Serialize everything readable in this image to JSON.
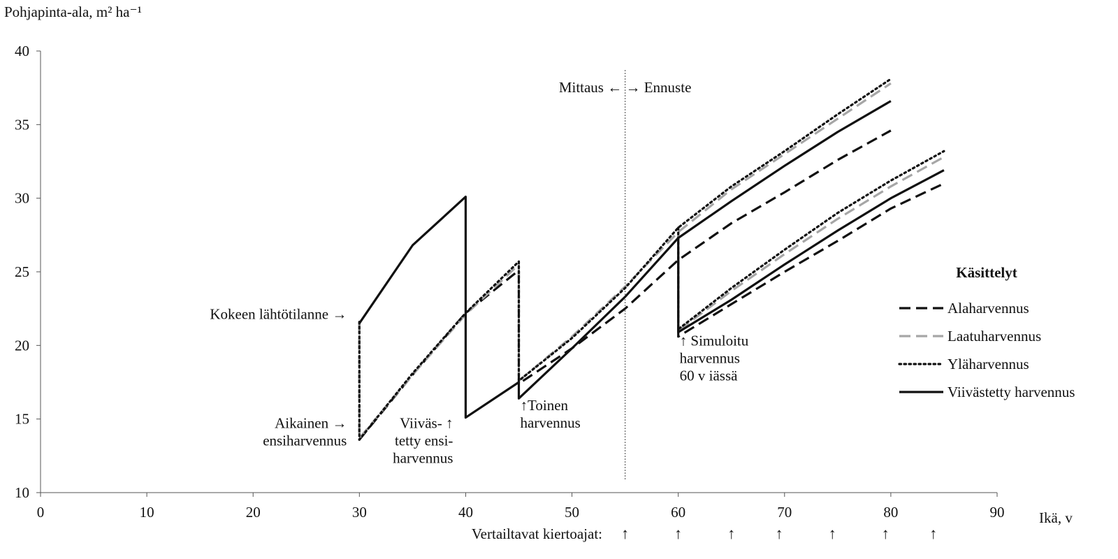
{
  "chart_data": {
    "type": "line",
    "ylabel": "Pohjapinta-ala, m² ha⁻¹",
    "xlabel": "Ikä, v",
    "xlim": [
      0,
      90
    ],
    "ylim": [
      10,
      40
    ],
    "xticks": [
      0,
      10,
      20,
      30,
      40,
      50,
      60,
      70,
      80,
      90
    ],
    "yticks": [
      10,
      15,
      20,
      25,
      30,
      35,
      40
    ],
    "grid": false,
    "legend_title": "Käsittelyt",
    "legend_position": "right",
    "divider": {
      "x": 55,
      "label": "Mittaus ←  → Ennuste"
    },
    "series": [
      {
        "name": "Alaharvennus",
        "style": "dashed",
        "color": "#111111",
        "segments": [
          [
            [
              30,
              21.6
            ],
            [
              30,
              13.6
            ],
            [
              35,
              18.0
            ],
            [
              40,
              22.2
            ],
            [
              45,
              25.1
            ],
            [
              45,
              17.4
            ],
            [
              50,
              19.8
            ],
            [
              55,
              22.5
            ],
            [
              60,
              25.8
            ],
            [
              65,
              28.3
            ],
            [
              70,
              30.4
            ],
            [
              75,
              32.6
            ],
            [
              80,
              34.6
            ]
          ],
          [
            [
              60,
              25.8
            ],
            [
              60,
              20.6
            ],
            [
              65,
              22.8
            ],
            [
              70,
              25.0
            ],
            [
              75,
              27.1
            ],
            [
              80,
              29.3
            ],
            [
              85,
              31.0
            ]
          ]
        ]
      },
      {
        "name": "Laatuharvennus",
        "style": "dashed",
        "color": "#a6a6a6",
        "segments": [
          [
            [
              30,
              21.6
            ],
            [
              30,
              13.7
            ],
            [
              35,
              18.0
            ],
            [
              40,
              22.1
            ],
            [
              45,
              25.5
            ],
            [
              45,
              17.6
            ],
            [
              50,
              20.6
            ],
            [
              55,
              24.0
            ],
            [
              60,
              27.7
            ],
            [
              65,
              30.6
            ],
            [
              70,
              33.0
            ],
            [
              75,
              35.4
            ],
            [
              80,
              37.8
            ]
          ],
          [
            [
              60,
              27.7
            ],
            [
              60,
              21.0
            ],
            [
              65,
              23.7
            ],
            [
              70,
              26.2
            ],
            [
              75,
              28.6
            ],
            [
              80,
              30.8
            ],
            [
              85,
              32.8
            ]
          ]
        ]
      },
      {
        "name": "Yläharvennus",
        "style": "dotted",
        "color": "#111111",
        "segments": [
          [
            [
              30,
              21.6
            ],
            [
              30,
              13.6
            ],
            [
              35,
              18.1
            ],
            [
              40,
              22.2
            ],
            [
              45,
              25.7
            ],
            [
              45,
              17.6
            ],
            [
              50,
              20.5
            ],
            [
              55,
              23.9
            ],
            [
              60,
              28.0
            ],
            [
              65,
              30.8
            ],
            [
              70,
              33.2
            ],
            [
              75,
              35.7
            ],
            [
              80,
              38.1
            ]
          ],
          [
            [
              60,
              28.0
            ],
            [
              60,
              21.1
            ],
            [
              65,
              23.9
            ],
            [
              70,
              26.5
            ],
            [
              75,
              29.0
            ],
            [
              80,
              31.2
            ],
            [
              85,
              33.2
            ]
          ]
        ]
      },
      {
        "name": "Viivästetty harvennus",
        "style": "solid",
        "color": "#111111",
        "segments": [
          [
            [
              30,
              21.5
            ],
            [
              35,
              26.8
            ],
            [
              40,
              30.1
            ],
            [
              40,
              15.1
            ],
            [
              45,
              17.5
            ],
            [
              45,
              16.4
            ],
            [
              50,
              19.8
            ],
            [
              55,
              23.3
            ],
            [
              60,
              27.3
            ],
            [
              65,
              29.8
            ],
            [
              70,
              32.2
            ],
            [
              75,
              34.5
            ],
            [
              80,
              36.6
            ]
          ],
          [
            [
              60,
              27.3
            ],
            [
              60,
              20.9
            ],
            [
              65,
              23.1
            ],
            [
              70,
              25.5
            ],
            [
              75,
              27.8
            ],
            [
              80,
              30.0
            ],
            [
              85,
              31.9
            ]
          ]
        ]
      }
    ],
    "annotations": [
      {
        "x": 30,
        "y": 21.8,
        "lines": [
          "Kokeen lähtötilanne →"
        ],
        "anchor": "end"
      },
      {
        "x": 30,
        "y": 14.4,
        "lines": [
          "Aikainen →",
          "ensiharvennus"
        ],
        "anchor": "end"
      },
      {
        "x": 40,
        "y": 14.4,
        "lines": [
          "Viiväs- ↑",
          "tetty ensi-",
          "harvennus"
        ],
        "anchor": "end"
      },
      {
        "x": 45,
        "y": 15.6,
        "lines": [
          "↑Toinen",
          "harvennus"
        ],
        "anchor": "start"
      },
      {
        "x": 60,
        "y": 20.0,
        "lines": [
          "↑ Simuloitu",
          "harvennus",
          "60 v iässä"
        ],
        "anchor": "start"
      }
    ],
    "rotation_label": "Vertailtavat kiertoajat:",
    "rotation_arrows": [
      55,
      60,
      65,
      69.5,
      74.5,
      79.5,
      84
    ]
  }
}
